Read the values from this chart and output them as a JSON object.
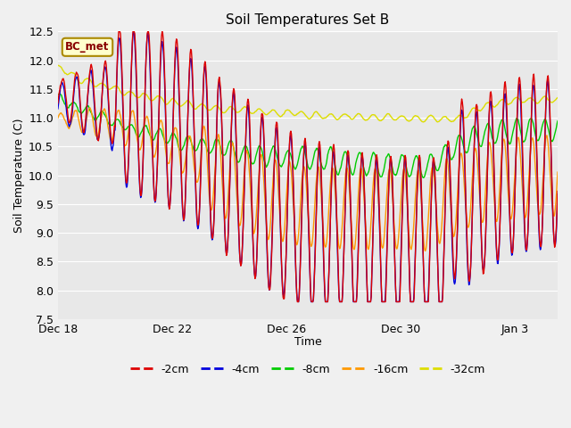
{
  "title": "Soil Temperatures Set B",
  "xlabel": "Time",
  "ylabel": "Soil Temperature (C)",
  "ylim": [
    7.5,
    12.5
  ],
  "annotation": "BC_met",
  "series_colors": {
    "-2cm": "#dd0000",
    "-4cm": "#0000dd",
    "-8cm": "#00cc00",
    "-16cm": "#ff9900",
    "-32cm": "#dddd00"
  },
  "bg_color": "#e8e8e8",
  "grid_color": "#ffffff",
  "tick_positions": [
    0,
    4,
    8,
    12,
    16
  ],
  "tick_labels": [
    "Dec 18",
    "Dec 22",
    "Dec 26",
    "Dec 30",
    "Jan 3"
  ],
  "yticks": [
    7.5,
    8.0,
    8.5,
    9.0,
    9.5,
    10.0,
    10.5,
    11.0,
    11.5,
    12.0,
    12.5
  ],
  "n_days": 17.5
}
